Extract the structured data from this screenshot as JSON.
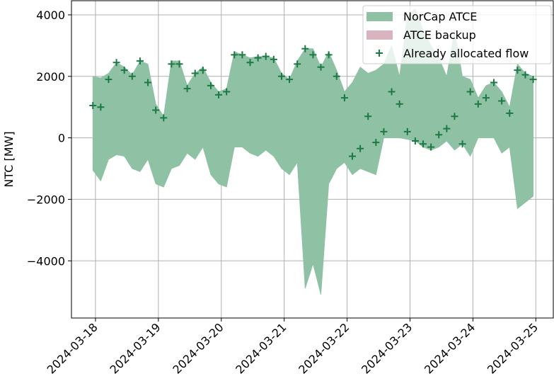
{
  "chart_data": {
    "type": "area",
    "ylabel": "NTC [MW]",
    "x": [
      "2024-03-17T23:00",
      "2024-03-18T02:00",
      "2024-03-18T05:00",
      "2024-03-18T08:00",
      "2024-03-18T11:00",
      "2024-03-18T14:00",
      "2024-03-18T17:00",
      "2024-03-18T20:00",
      "2024-03-18T23:00",
      "2024-03-19T02:00",
      "2024-03-19T05:00",
      "2024-03-19T08:00",
      "2024-03-19T11:00",
      "2024-03-19T14:00",
      "2024-03-19T17:00",
      "2024-03-19T20:00",
      "2024-03-19T23:00",
      "2024-03-20T02:00",
      "2024-03-20T05:00",
      "2024-03-20T08:00",
      "2024-03-20T11:00",
      "2024-03-20T14:00",
      "2024-03-20T17:00",
      "2024-03-20T20:00",
      "2024-03-20T23:00",
      "2024-03-21T02:00",
      "2024-03-21T05:00",
      "2024-03-21T08:00",
      "2024-03-21T11:00",
      "2024-03-21T14:00",
      "2024-03-21T17:00",
      "2024-03-21T20:00",
      "2024-03-21T23:00",
      "2024-03-22T02:00",
      "2024-03-22T05:00",
      "2024-03-22T08:00",
      "2024-03-22T11:00",
      "2024-03-22T14:00",
      "2024-03-22T17:00",
      "2024-03-22T20:00",
      "2024-03-22T23:00",
      "2024-03-23T02:00",
      "2024-03-23T05:00",
      "2024-03-23T08:00",
      "2024-03-23T11:00",
      "2024-03-23T14:00",
      "2024-03-23T17:00",
      "2024-03-23T20:00",
      "2024-03-23T23:00",
      "2024-03-24T02:00",
      "2024-03-24T05:00",
      "2024-03-24T08:00",
      "2024-03-24T11:00",
      "2024-03-24T14:00",
      "2024-03-24T17:00",
      "2024-03-24T20:00",
      "2024-03-24T23:00"
    ],
    "series": [
      {
        "name": "NorCap ATCE",
        "color": "#8fc1a5",
        "kind": "band",
        "upper": [
          2000,
          1950,
          2100,
          2450,
          2300,
          2050,
          2500,
          2400,
          1100,
          700,
          2500,
          2500,
          1700,
          2100,
          2300,
          1800,
          1500,
          1600,
          2800,
          2700,
          2600,
          2650,
          2650,
          2600,
          2100,
          1900,
          2500,
          2900,
          2900,
          2300,
          2800,
          2200,
          1500,
          1800,
          2300,
          2100,
          2200,
          2400,
          3000,
          2000,
          4000,
          4200,
          3500,
          3000,
          2600,
          2000,
          3500,
          2000,
          1900,
          1300,
          1700,
          1800,
          1500,
          1000,
          2400,
          2100,
          2000
        ],
        "lower": [
          -1050,
          -1400,
          -700,
          -550,
          -600,
          -1000,
          -1100,
          -700,
          -1500,
          -1600,
          -1000,
          -900,
          -500,
          -700,
          -300,
          -1200,
          -1500,
          -1600,
          -300,
          -300,
          -500,
          -600,
          -400,
          -600,
          -1000,
          -1200,
          -800,
          -4900,
          -4100,
          -5100,
          -1500,
          -1000,
          -800,
          -1200,
          -1000,
          -1100,
          -1200,
          0,
          0,
          0,
          -50,
          -100,
          -300,
          -400,
          -300,
          -100,
          -400,
          -200,
          -600,
          0,
          0,
          0,
          -500,
          -300,
          -2300,
          -2100,
          -1900
        ]
      },
      {
        "name": "ATCE backup",
        "color": "#d8b4bf",
        "kind": "band"
      },
      {
        "name": "Already allocated flow",
        "color": "#1b7a43",
        "kind": "scatter",
        "values": [
          1050,
          1000,
          1900,
          2450,
          2200,
          2000,
          2500,
          1800,
          900,
          650,
          2400,
          2400,
          1600,
          2100,
          2200,
          1700,
          1400,
          1500,
          2700,
          2700,
          2450,
          2600,
          2650,
          2550,
          2000,
          1900,
          2400,
          2900,
          2700,
          2300,
          2700,
          2000,
          1300,
          -600,
          -350,
          700,
          -150,
          200,
          1500,
          1100,
          200,
          -100,
          -200,
          -300,
          100,
          300,
          700,
          -200,
          1500,
          1100,
          1300,
          1800,
          1200,
          800,
          2200,
          2050,
          1900
        ]
      }
    ],
    "xlim": [
      "2024-03-17T14:50",
      "2024-03-25T06:40"
    ],
    "xticks": [
      "2024-03-18",
      "2024-03-19",
      "2024-03-20",
      "2024-03-21",
      "2024-03-22",
      "2024-03-23",
      "2024-03-24",
      "2024-03-25"
    ],
    "ylim": [
      -5860,
      4460
    ],
    "yticks": [
      {
        "value": -4000,
        "label": "−4000"
      },
      {
        "value": -2000,
        "label": "−2000"
      },
      0,
      2000,
      4000
    ],
    "grid": true,
    "legend": "upper right"
  }
}
